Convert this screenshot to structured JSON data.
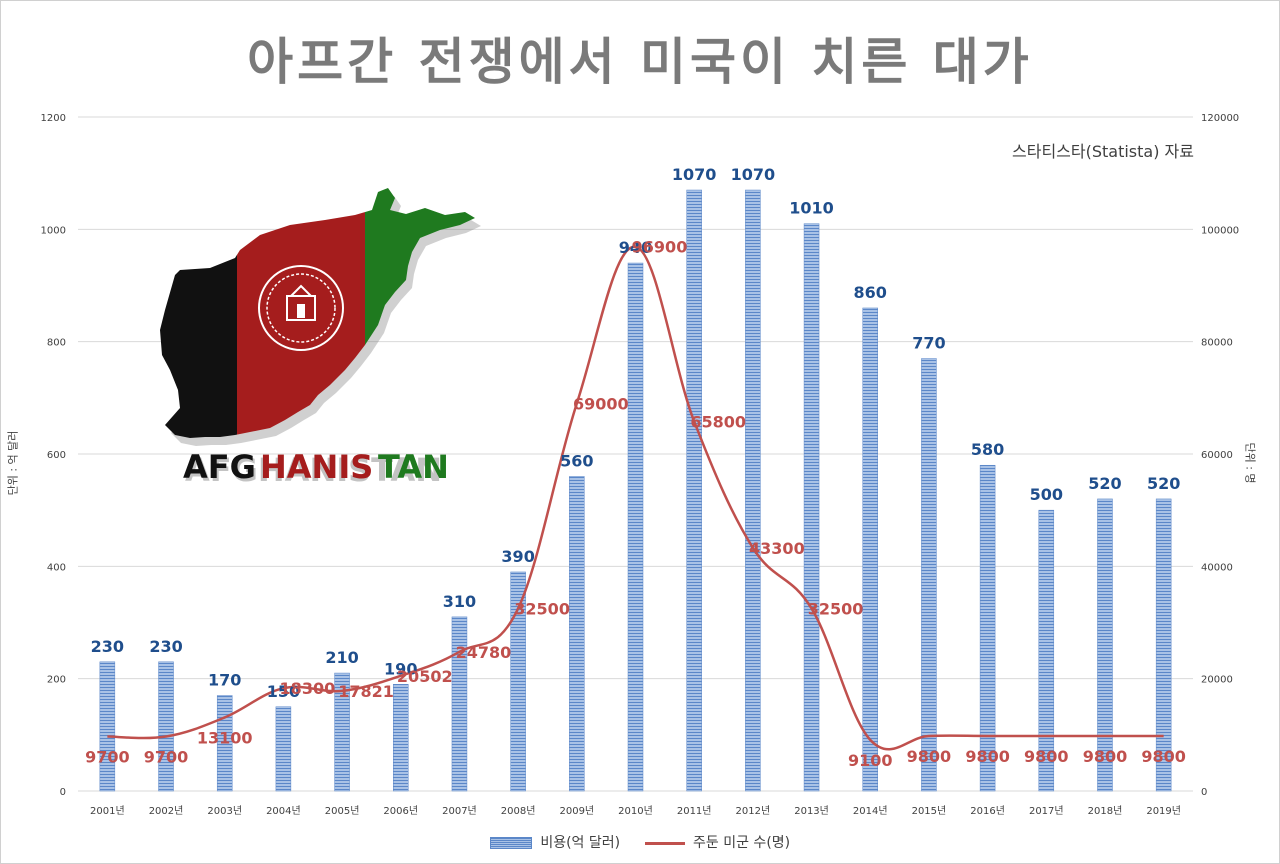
{
  "title": "아프간 전쟁에서 미국이 치른 대가",
  "source": "스타티스타(Statista) 자료",
  "logo_text": "AFGHANISTAN",
  "colors": {
    "bar": "#5b87c8",
    "bar_light": "#a9c2e6",
    "line": "#c0504d",
    "bar_label": "#1f4e8c",
    "line_label": "#c0504d",
    "grid": "#d9d9d9",
    "title": "#7a7a7a"
  },
  "chart_data": {
    "type": "bar+line",
    "title": "아프간 전쟁에서 미국이 치른 대가",
    "categories": [
      "2001년",
      "2002년",
      "2003년",
      "2004년",
      "2005년",
      "2006년",
      "2007년",
      "2008년",
      "2009년",
      "2010년",
      "2011년",
      "2012년",
      "2013년",
      "2014년",
      "2015년",
      "2016년",
      "2017년",
      "2018년",
      "2019년"
    ],
    "series": [
      {
        "name": "비용(억 달러)",
        "type": "bar",
        "axis": "left",
        "values": [
          230,
          230,
          170,
          150,
          210,
          190,
          310,
          390,
          560,
          940,
          1070,
          1070,
          1010,
          860,
          770,
          580,
          500,
          520,
          520
        ]
      },
      {
        "name": "주둔 미군 수(명)",
        "type": "line",
        "axis": "right",
        "values": [
          9700,
          9700,
          13100,
          18300,
          17821,
          20502,
          24780,
          32500,
          69000,
          96900,
          65800,
          43300,
          32500,
          9100,
          9800,
          9800,
          9800,
          9800,
          9800
        ]
      }
    ],
    "y_left": {
      "label": "단위 : 억 달러",
      "range": [
        0,
        1200
      ],
      "ticks": [
        0,
        200,
        400,
        600,
        800,
        1000,
        1200
      ]
    },
    "y_right": {
      "label": "단위 : 명",
      "range": [
        0,
        120000
      ],
      "ticks": [
        0,
        20000,
        40000,
        60000,
        80000,
        100000,
        120000
      ]
    },
    "grid": true,
    "legend": "bottom"
  }
}
